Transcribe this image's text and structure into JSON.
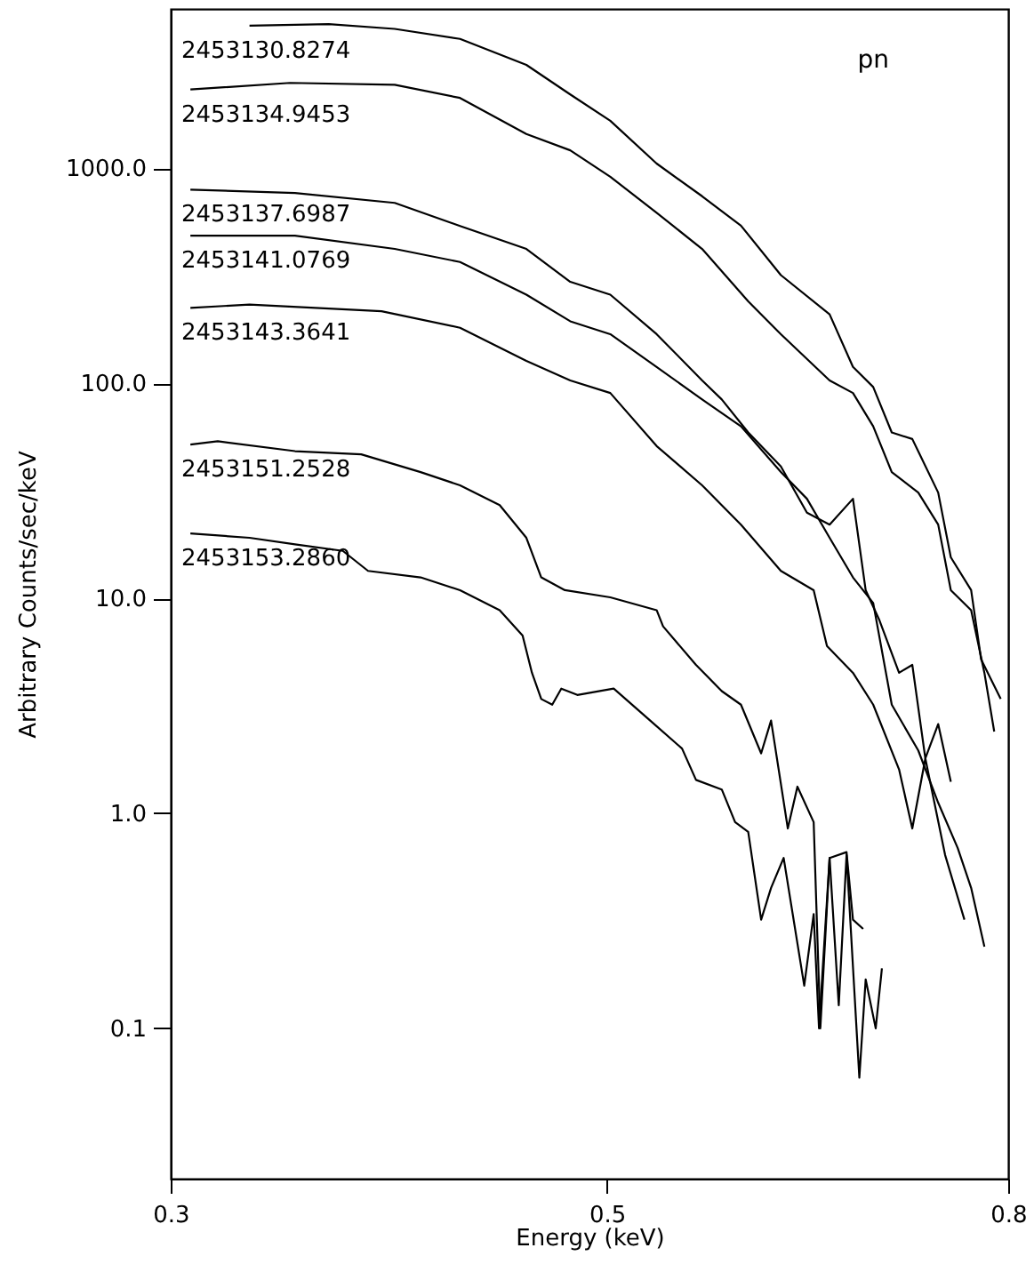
{
  "chart_data": {
    "type": "line",
    "xlabel": "Energy (keV)",
    "ylabel": "Arbitrary Counts/sec/keV",
    "log": "xy",
    "grid": false,
    "marker": "none",
    "line_style": "solid",
    "xlim": [
      0.3,
      0.8
    ],
    "xticks": [
      0.3,
      0.5,
      0.8
    ],
    "ylim": [
      0.02,
      5500
    ],
    "yticks": [
      0.1,
      {
        "value": 1,
        "label": "1.0"
      },
      {
        "value": 10,
        "label": "10.0"
      },
      {
        "value": 100,
        "label": "100.0"
      },
      {
        "value": 1000,
        "label": "1000.0"
      }
    ],
    "annotations": [
      "pn"
    ],
    "series": [
      {
        "name": "2453130.8274",
        "color": "#000000",
        "x": [
          0.329,
          0.361,
          0.39,
          0.421,
          0.455,
          0.479,
          0.502,
          0.53,
          0.559,
          0.585,
          0.613,
          0.649,
          0.667,
          0.683,
          0.698,
          0.715,
          0.737,
          0.748,
          0.766,
          0.775,
          0.793
        ],
        "values": [
          4600,
          4670,
          4440,
          3990,
          3020,
          2200,
          1660,
          1050,
          740,
          540,
          318,
          209,
          119,
          96,
          59,
          55,
          31,
          15.5,
          10.9,
          5.2,
          3.4
        ]
      },
      {
        "name": "2453134.9453",
        "color": "#000000",
        "x": [
          0.307,
          0.345,
          0.39,
          0.421,
          0.455,
          0.479,
          0.502,
          0.53,
          0.559,
          0.59,
          0.613,
          0.649,
          0.667,
          0.683,
          0.698,
          0.72,
          0.737,
          0.748,
          0.766,
          0.778,
          0.787
        ],
        "values": [
          2320,
          2490,
          2440,
          2120,
          1440,
          1210,
          912,
          620,
          421,
          240,
          169,
          103,
          90,
          63,
          38.6,
          31,
          22,
          10.9,
          8.8,
          4.5,
          2.4
        ]
      },
      {
        "name": "2453137.6987",
        "color": "#000000",
        "x": [
          0.307,
          0.347,
          0.39,
          0.421,
          0.455,
          0.479,
          0.502,
          0.53,
          0.559,
          0.572,
          0.59,
          0.613,
          0.632,
          0.649,
          0.667,
          0.677,
          0.688,
          0.704,
          0.715,
          0.726,
          0.737,
          0.748
        ],
        "values": [
          794,
          766,
          689,
          538,
          421,
          296,
          258,
          169,
          103,
          84,
          59,
          41,
          25,
          22,
          29,
          10.9,
          7.9,
          4.5,
          4.9,
          1.8,
          2.6,
          1.4
        ]
      },
      {
        "name": "2453141.0769",
        "color": "#000000",
        "x": [
          0.307,
          0.347,
          0.39,
          0.421,
          0.455,
          0.479,
          0.502,
          0.53,
          0.559,
          0.585,
          0.613,
          0.632,
          0.649,
          0.667,
          0.683,
          0.698,
          0.72,
          0.737,
          0.754,
          0.766,
          0.778
        ],
        "values": [
          485,
          485,
          421,
          366,
          258,
          194,
          169,
          119,
          84,
          63,
          38.6,
          29,
          19.1,
          12.5,
          9.5,
          3.2,
          1.96,
          1.12,
          0.69,
          0.45,
          0.24
        ]
      },
      {
        "name": "2453143.3641",
        "color": "#000000",
        "x": [
          0.307,
          0.329,
          0.384,
          0.421,
          0.455,
          0.479,
          0.502,
          0.53,
          0.559,
          0.585,
          0.613,
          0.637,
          0.647,
          0.667,
          0.683,
          0.704,
          0.715,
          0.726,
          0.743,
          0.76
        ],
        "values": [
          224,
          232,
          216,
          181,
          127,
          103,
          90,
          51,
          33.5,
          22,
          13.4,
          10.9,
          6.0,
          4.5,
          3.2,
          1.6,
          0.85,
          1.8,
          0.64,
          0.32
        ]
      },
      {
        "name": "2453151.2528",
        "color": "#000000",
        "x": [
          0.307,
          0.317,
          0.347,
          0.375,
          0.402,
          0.421,
          0.441,
          0.455,
          0.463,
          0.476,
          0.502,
          0.53,
          0.534,
          0.555,
          0.572,
          0.585,
          0.599,
          0.606,
          0.618,
          0.625,
          0.637,
          0.642,
          0.649,
          0.662,
          0.667,
          0.675
        ],
        "values": [
          51.8,
          53.7,
          48.3,
          46.7,
          38.6,
          33.5,
          27.1,
          19.1,
          12.5,
          10.9,
          10.1,
          8.8,
          7.4,
          4.9,
          3.7,
          3.2,
          1.9,
          2.7,
          0.85,
          1.33,
          0.91,
          0.1,
          0.62,
          0.66,
          0.32,
          0.29
        ]
      },
      {
        "name": "2453153.2860",
        "color": "#000000",
        "x": [
          0.307,
          0.329,
          0.347,
          0.367,
          0.378,
          0.402,
          0.421,
          0.441,
          0.453,
          0.458,
          0.463,
          0.469,
          0.474,
          0.483,
          0.504,
          0.526,
          0.546,
          0.555,
          0.572,
          0.581,
          0.59,
          0.599,
          0.606,
          0.615,
          0.63,
          0.637,
          0.641,
          0.649,
          0.656,
          0.662,
          0.672,
          0.677,
          0.685,
          0.69
        ],
        "values": [
          20.0,
          19.1,
          17.8,
          16.6,
          13.4,
          12.5,
          10.9,
          8.8,
          6.7,
          4.5,
          3.4,
          3.2,
          3.8,
          3.55,
          3.8,
          2.7,
          2.0,
          1.43,
          1.29,
          0.91,
          0.82,
          0.32,
          0.45,
          0.62,
          0.158,
          0.34,
          0.1,
          0.62,
          0.128,
          0.64,
          0.059,
          0.169,
          0.1,
          0.19
        ]
      }
    ]
  }
}
